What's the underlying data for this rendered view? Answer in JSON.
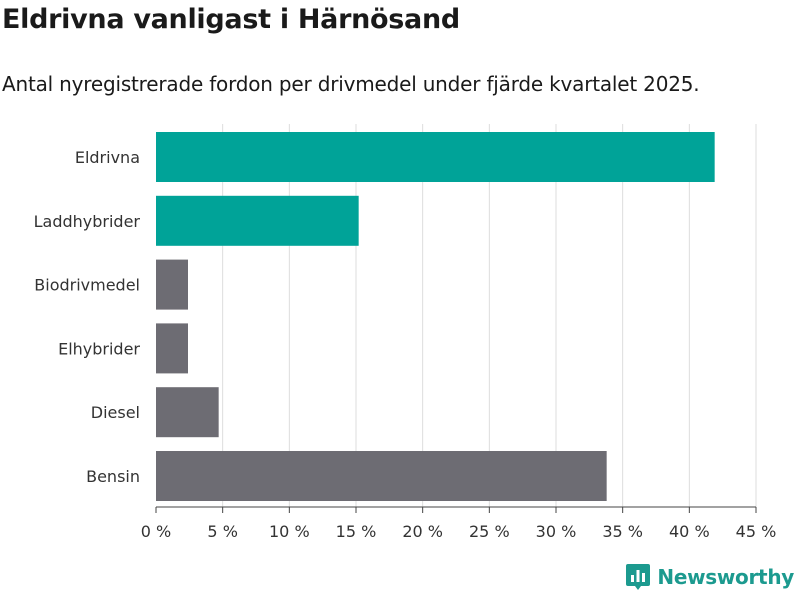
{
  "title": "Eldrivna vanligast i Härnösand",
  "subtitle": "Antal nyregistrerade fordon per drivmedel under fjärde kvartalet 2025.",
  "brand": "Newsworthy",
  "colors": {
    "highlight": "#00a398",
    "default": "#6d6c73",
    "grid": "#dddddd",
    "brand": "#1c9a8f"
  },
  "chart_data": {
    "type": "bar",
    "orientation": "horizontal",
    "categories": [
      "Eldrivna",
      "Laddhybrider",
      "Biodrivmedel",
      "Elhybrider",
      "Diesel",
      "Bensin"
    ],
    "values": [
      41.9,
      15.2,
      2.4,
      2.4,
      4.7,
      33.8
    ],
    "highlight": [
      true,
      true,
      false,
      false,
      false,
      false
    ],
    "xlim": [
      0,
      45
    ],
    "xticks": [
      0,
      5,
      10,
      15,
      20,
      25,
      30,
      35,
      40,
      45
    ],
    "tick_labels": [
      "0 %",
      "5 %",
      "10 %",
      "15 %",
      "20 %",
      "25 %",
      "30 %",
      "35 %",
      "40 %",
      "45 %"
    ],
    "grid": true
  }
}
